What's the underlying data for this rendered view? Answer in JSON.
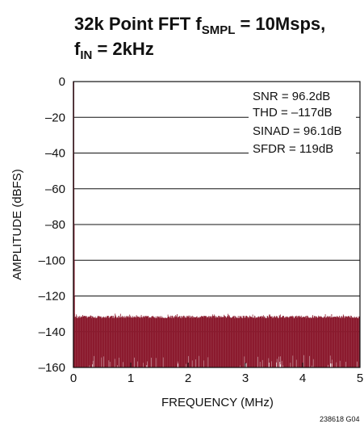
{
  "chart_data": {
    "type": "line",
    "title_parts": {
      "prefix": "32k Point FFT f",
      "sub1": "SMPL",
      "mid": " = 10Msps,",
      "line2_prefix": "f",
      "sub2": "IN",
      "line2_suffix": " = 2kHz"
    },
    "xlabel": "FREQUENCY (MHz)",
    "ylabel": "AMPLITUDE (dBFS)",
    "xlim": [
      0,
      5
    ],
    "ylim": [
      -160,
      0
    ],
    "x_ticks": [
      "0",
      "1",
      "2",
      "3",
      "4",
      "5"
    ],
    "y_ticks": [
      "0",
      "–20",
      "–40",
      "–60",
      "–80",
      "–100",
      "–120",
      "–140",
      "–160"
    ],
    "grid": "horizontal",
    "fundamental": {
      "x": 0.002,
      "y": 0
    },
    "noise_floor": {
      "top_dbfs": -131,
      "typical_dbfs": -150,
      "bottom_dbfs": -160
    },
    "annotations": [
      "SNR = 96.2dB",
      "THD = –117dB",
      "SINAD = 96.1dB",
      "SFDR = 119dB"
    ],
    "colors": {
      "trace": "#8b1a2e",
      "axes": "#111111"
    },
    "figure_id": "238618 G04"
  }
}
